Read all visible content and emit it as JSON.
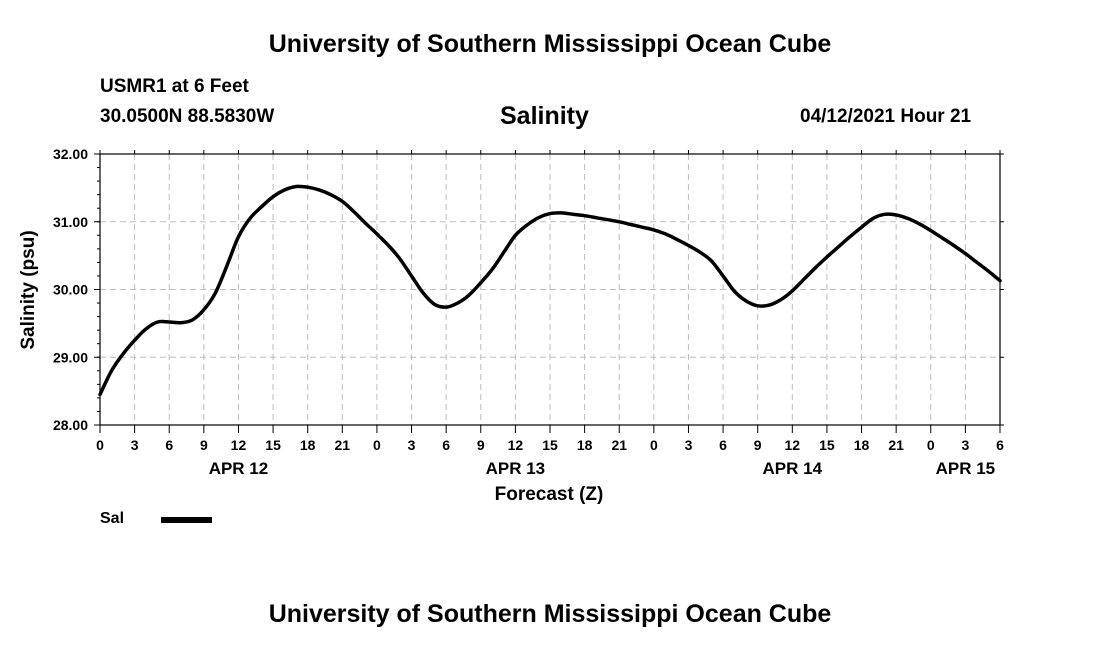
{
  "header": {
    "title_top": "University of Southern Mississippi Ocean Cube",
    "station": "USMR1 at 6 Feet",
    "coords": "30.0500N  88.5830W",
    "datetime": "04/12/2021 Hour 21",
    "title_bottom": "University of Southern Mississippi Ocean Cube"
  },
  "chart_data": {
    "type": "line",
    "title": "Salinity",
    "xlabel": "Forecast (Z)",
    "ylabel": "Salinity (psu)",
    "ylim": [
      28.0,
      32.0
    ],
    "ytick_labels": [
      "28.00",
      "29.00",
      "30.00",
      "31.00",
      "32.00"
    ],
    "xlim_hours": [
      0,
      78
    ],
    "xtick_labels": [
      "0",
      "3",
      "6",
      "9",
      "12",
      "15",
      "18",
      "21",
      "0",
      "3",
      "6",
      "9",
      "12",
      "15",
      "18",
      "21",
      "0",
      "3",
      "6",
      "9",
      "12",
      "15",
      "18",
      "21",
      "0",
      "3",
      "6"
    ],
    "day_labels": [
      "APR 12",
      "APR 13",
      "APR 14",
      "APR 15"
    ],
    "grid": true,
    "legend_position": "bottom-left",
    "series": [
      {
        "name": "Sal",
        "color": "#000000",
        "x": [
          0,
          1,
          2,
          3,
          4,
          5,
          6,
          7,
          8,
          9,
          10,
          11,
          12,
          13,
          14,
          15,
          16,
          17,
          18,
          19,
          20,
          21,
          22,
          23,
          24,
          25,
          26,
          27,
          28,
          29,
          30,
          31,
          32,
          33,
          34,
          35,
          36,
          37,
          38,
          39,
          40,
          41,
          42,
          43,
          44,
          45,
          46,
          47,
          48,
          49,
          50,
          51,
          52,
          53,
          54,
          55,
          56,
          57,
          58,
          59,
          60,
          61,
          62,
          63,
          64,
          65,
          66,
          67,
          68,
          69,
          70,
          71,
          72,
          73,
          74,
          75,
          76,
          77,
          78
        ],
        "values": [
          28.45,
          28.8,
          29.05,
          29.25,
          29.42,
          29.52,
          29.52,
          29.51,
          29.55,
          29.7,
          29.95,
          30.35,
          30.78,
          31.05,
          31.22,
          31.37,
          31.47,
          31.52,
          31.51,
          31.47,
          31.4,
          31.3,
          31.15,
          30.98,
          30.82,
          30.65,
          30.45,
          30.2,
          29.95,
          29.78,
          29.74,
          29.8,
          29.92,
          30.1,
          30.3,
          30.55,
          30.8,
          30.95,
          31.06,
          31.12,
          31.13,
          31.11,
          31.09,
          31.06,
          31.03,
          31.0,
          30.96,
          30.92,
          30.88,
          30.82,
          30.74,
          30.65,
          30.55,
          30.42,
          30.2,
          29.97,
          29.83,
          29.76,
          29.77,
          29.85,
          29.98,
          30.15,
          30.32,
          30.48,
          30.63,
          30.78,
          30.92,
          31.05,
          31.11,
          31.1,
          31.05,
          30.97,
          30.87,
          30.76,
          30.65,
          30.53,
          30.4,
          30.27,
          30.13
        ]
      }
    ]
  },
  "legend": {
    "label": "Sal"
  }
}
